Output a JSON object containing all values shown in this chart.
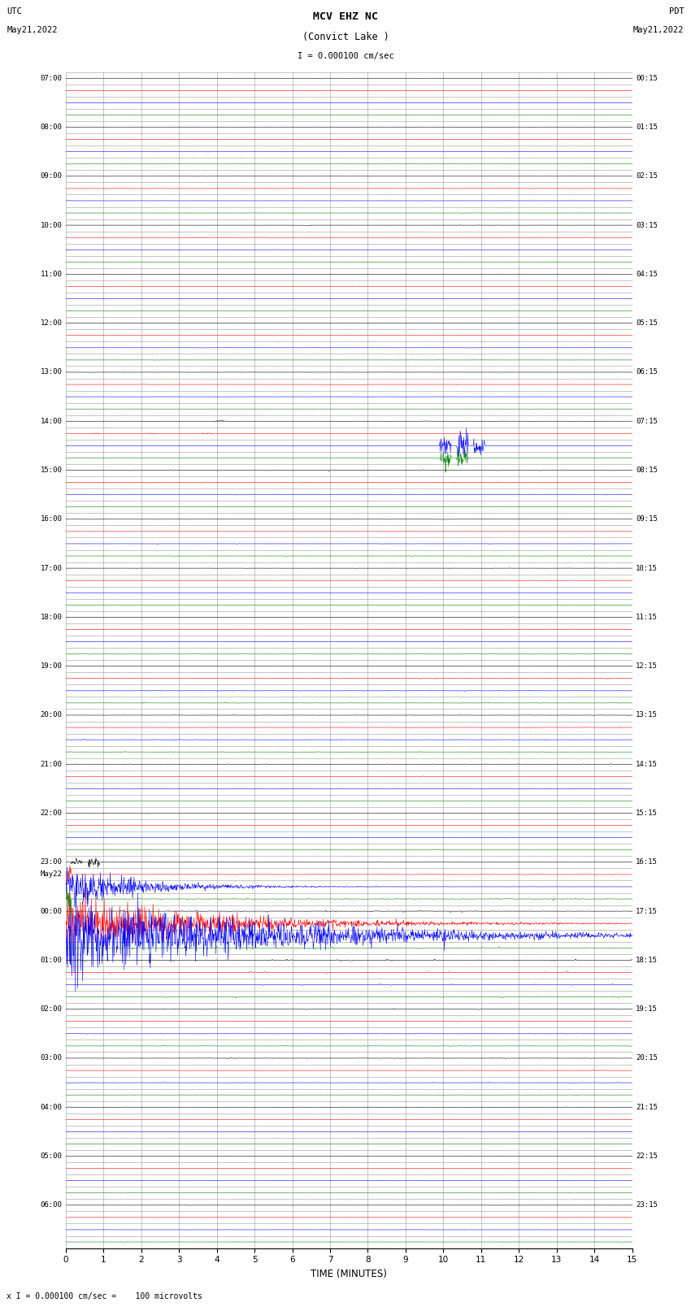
{
  "title_line1": "MCV EHZ NC",
  "title_line2": "(Convict Lake )",
  "scale_label": "I = 0.000100 cm/sec",
  "bottom_label": "x I = 0.000100 cm/sec =    100 microvolts",
  "utc_label_line1": "UTC",
  "utc_label_line2": "May21,2022",
  "pdt_label_line1": "PDT",
  "pdt_label_line2": "May21,2022",
  "xlabel": "TIME (MINUTES)",
  "minutes_per_trace": 15,
  "bg_color": "#ffffff",
  "grid_color": "#999999",
  "trace_colors_cycle": [
    "#000000",
    "#ff0000",
    "#0000ff",
    "#008000"
  ],
  "base_noise_amp": 0.03,
  "seed": 12345,
  "fig_width": 8.5,
  "fig_height": 16.13,
  "dpi": 100,
  "left_times": [
    "07:00",
    "",
    "",
    "",
    "08:00",
    "",
    "",
    "",
    "09:00",
    "",
    "",
    "",
    "10:00",
    "",
    "",
    "",
    "11:00",
    "",
    "",
    "",
    "12:00",
    "",
    "",
    "",
    "13:00",
    "",
    "",
    "",
    "14:00",
    "",
    "",
    "",
    "15:00",
    "",
    "",
    "",
    "16:00",
    "",
    "",
    "",
    "17:00",
    "",
    "",
    "",
    "18:00",
    "",
    "",
    "",
    "19:00",
    "",
    "",
    "",
    "20:00",
    "",
    "",
    "",
    "21:00",
    "",
    "",
    "",
    "22:00",
    "",
    "",
    "",
    "23:00",
    "May22",
    "",
    "",
    "00:00",
    "",
    "",
    "",
    "01:00",
    "",
    "",
    "",
    "02:00",
    "",
    "",
    "",
    "03:00",
    "",
    "",
    "",
    "04:00",
    "",
    "",
    "",
    "05:00",
    "",
    "",
    "",
    "06:00",
    ""
  ],
  "right_times": [
    "00:15",
    "",
    "",
    "",
    "01:15",
    "",
    "",
    "",
    "02:15",
    "",
    "",
    "",
    "03:15",
    "",
    "",
    "",
    "04:15",
    "",
    "",
    "",
    "05:15",
    "",
    "",
    "",
    "06:15",
    "",
    "",
    "",
    "07:15",
    "",
    "",
    "",
    "08:15",
    "",
    "",
    "",
    "09:15",
    "",
    "",
    "",
    "10:15",
    "",
    "",
    "",
    "11:15",
    "",
    "",
    "",
    "12:15",
    "",
    "",
    "",
    "13:15",
    "",
    "",
    "",
    "14:15",
    "",
    "",
    "",
    "15:15",
    "",
    "",
    "",
    "16:15",
    "",
    "",
    "",
    "17:15",
    "",
    "",
    "",
    "18:15",
    "",
    "",
    "",
    "19:15",
    "",
    "",
    "",
    "20:15",
    "",
    "",
    "",
    "21:15",
    "",
    "",
    "",
    "22:15",
    "",
    "",
    "",
    "23:15",
    ""
  ]
}
